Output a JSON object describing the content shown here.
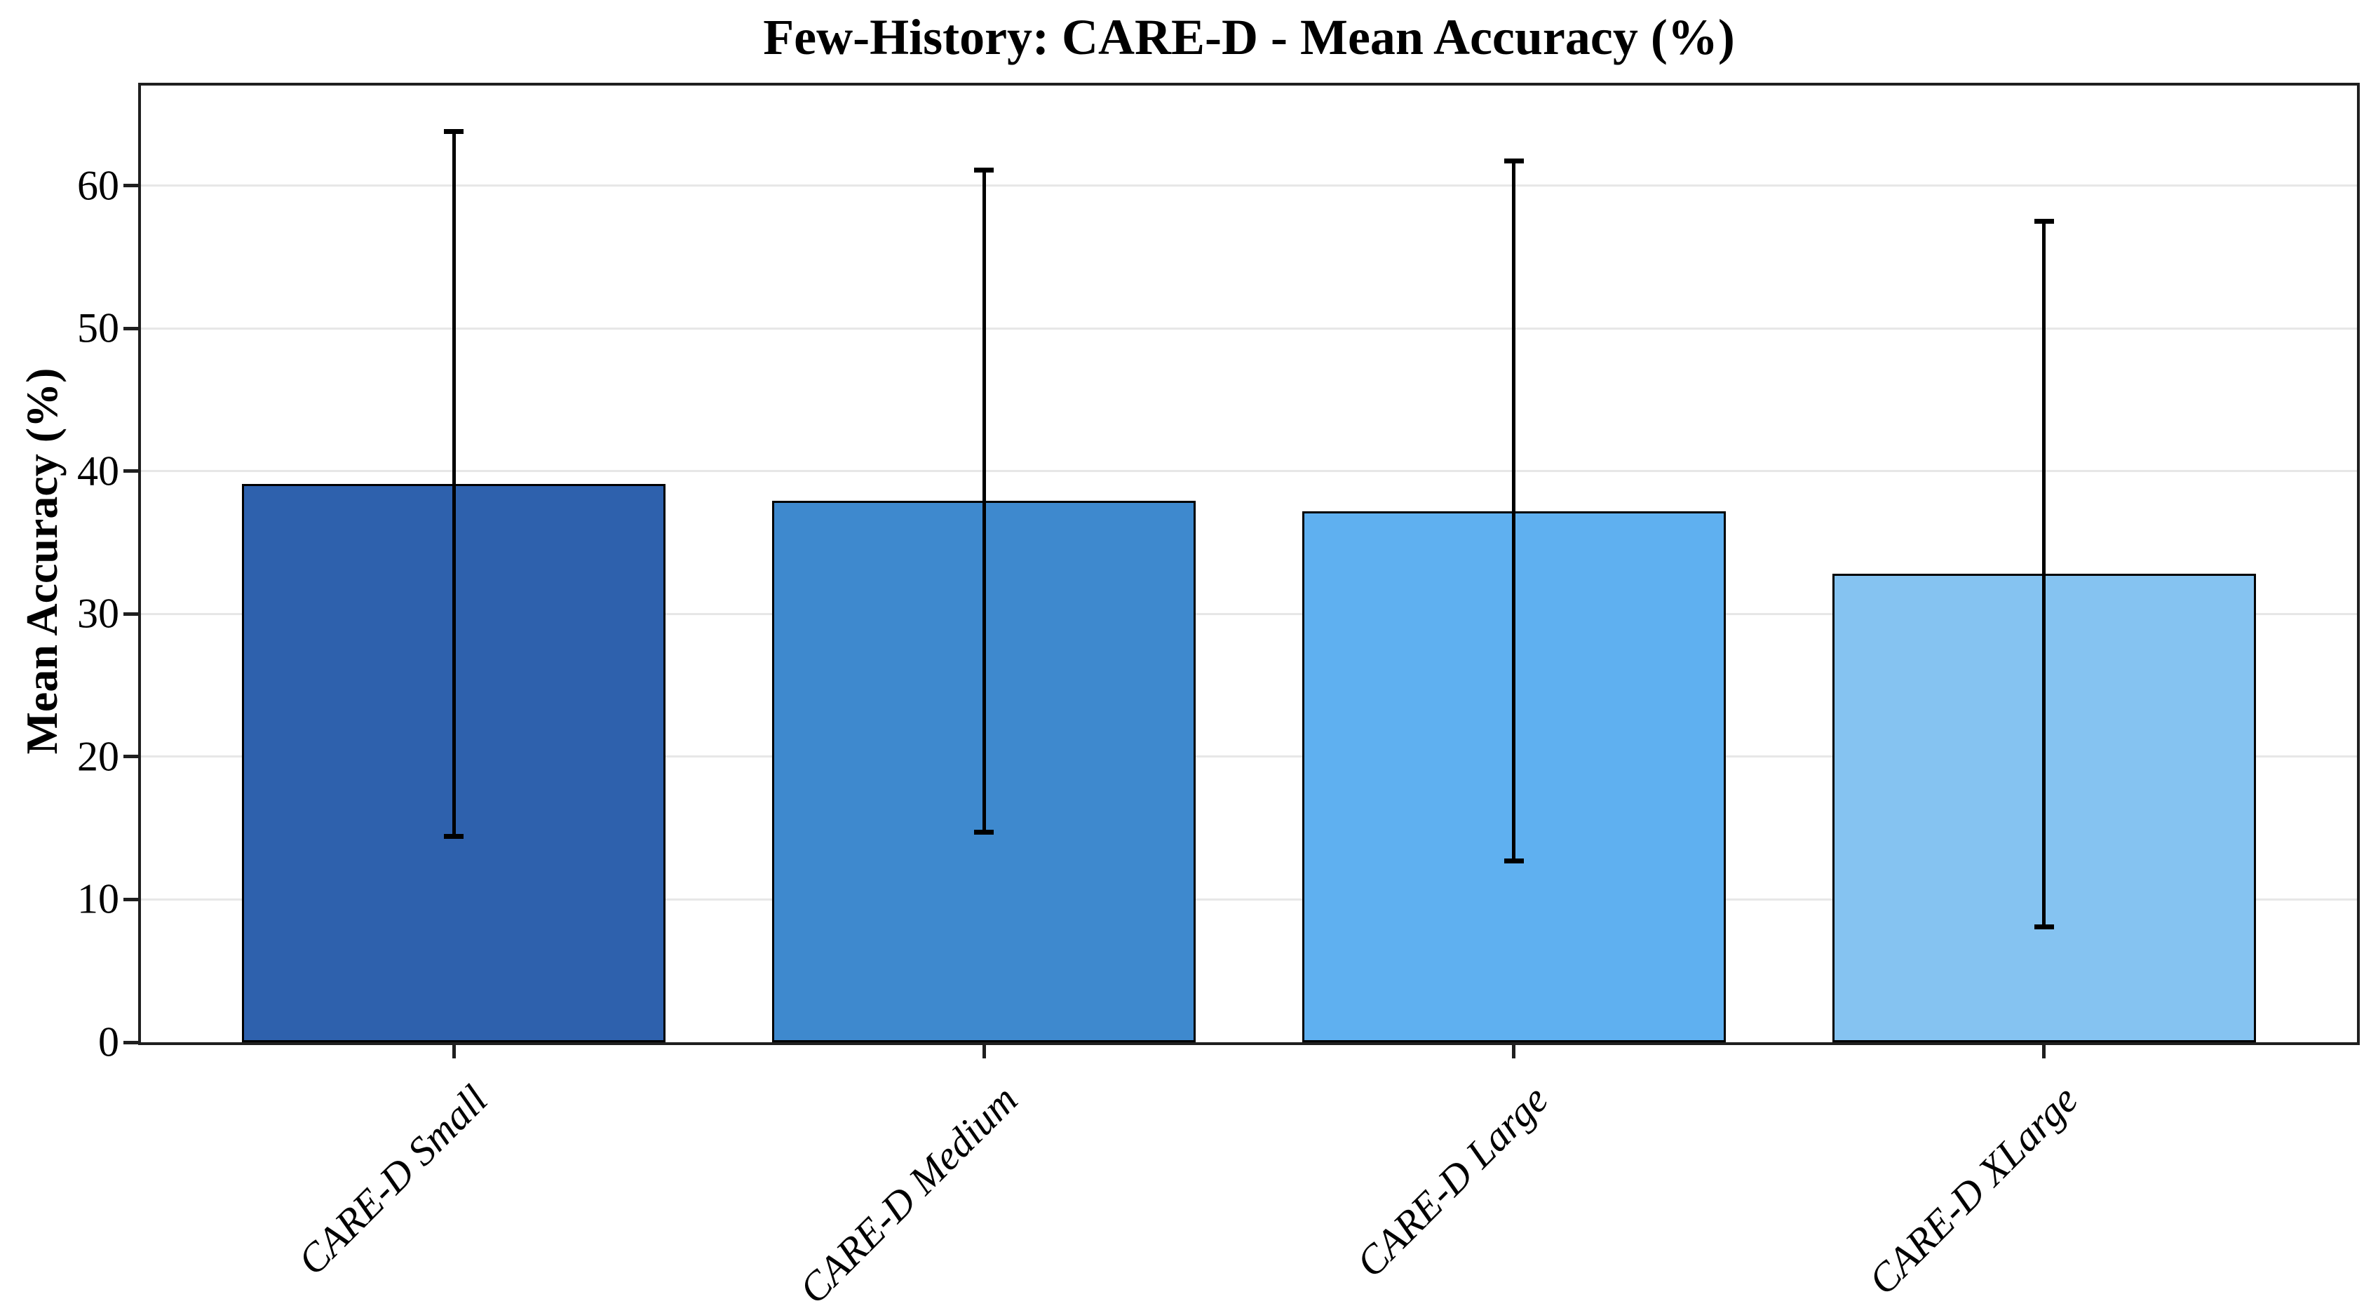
{
  "title": "Few-History: CARE-D - Mean Accuracy (%)",
  "chart_data": {
    "type": "bar",
    "title": "Few-History: CARE-D - Mean Accuracy (%)",
    "xlabel": "",
    "ylabel": "Mean Accuracy (%)",
    "categories": [
      "CARE-D Small",
      "CARE-D Medium",
      "CARE-D Large",
      "CARE-D XLarge"
    ],
    "series": [
      {
        "name": "Mean Accuracy (%)",
        "values": [
          39.1,
          37.9,
          37.2,
          32.8
        ],
        "errors": [
          24.7,
          23.2,
          24.5,
          24.7
        ],
        "error_upper": [
          63.8,
          61.1,
          61.7,
          57.5
        ],
        "error_lower": [
          14.4,
          14.7,
          12.7,
          8.1
        ]
      }
    ],
    "yticks": [
      0,
      10,
      20,
      30,
      40,
      50,
      60
    ],
    "ylim": [
      0,
      67
    ],
    "xlim": [
      -0.59,
      3.59
    ],
    "bar_width": 0.8,
    "grid": "y",
    "legend": "none",
    "bar_colors": [
      "#2E61AD",
      "#3E89CE",
      "#5FB0F0",
      "#85C3F1"
    ],
    "bar_edge_color": "#000000",
    "error_bar_color": "#000000",
    "grid_color": "#e7e7e7",
    "spine_color": "#1f1f1f",
    "background_color": "#ffffff",
    "tick_label_color": "#000000"
  }
}
